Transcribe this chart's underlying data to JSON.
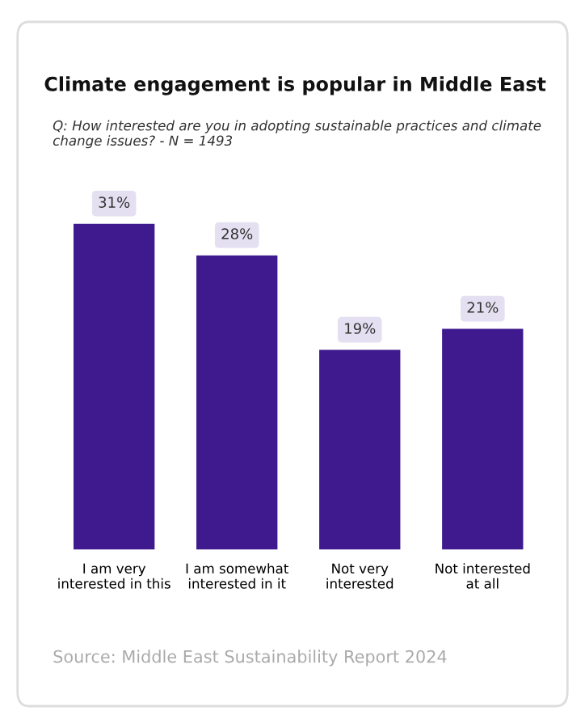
{
  "chart_data": {
    "type": "bar",
    "title": "Climate engagement is popular in Middle East",
    "subtitle": "Q: How interested are you in adopting sustainable practices and climate change issues? - N = 1493",
    "categories": [
      "I am very\ninterested in this",
      "I am somewhat\ninterested in it",
      "Not very\ninterested",
      "Not interested\nat all"
    ],
    "values": [
      31,
      28,
      19,
      21
    ],
    "value_labels": [
      "31%",
      "28%",
      "19%",
      "21%"
    ],
    "color": "#3f1a8f",
    "tick_labels": "x",
    "grid": false,
    "annotations": [
      "Source: Middle East Sustainability Report 2024"
    ]
  }
}
